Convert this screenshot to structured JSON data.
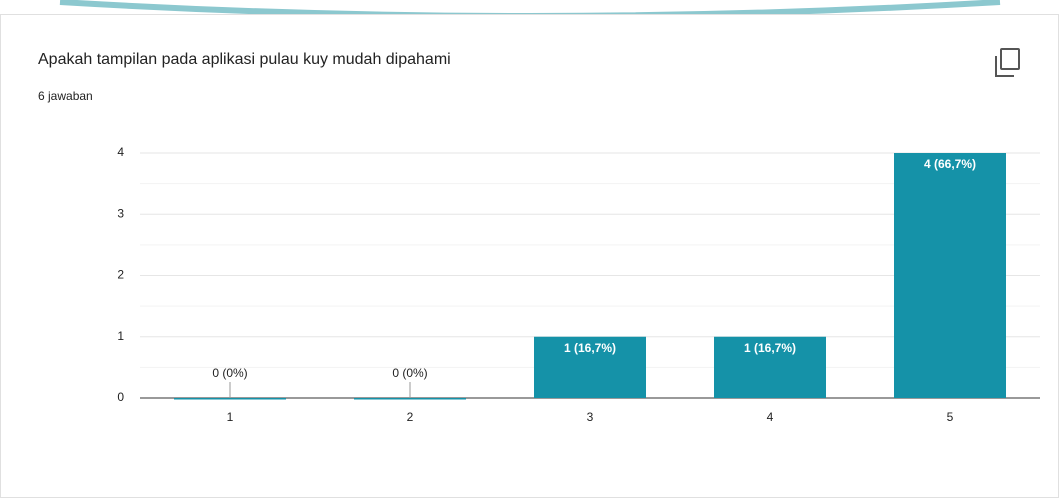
{
  "chart_data": {
    "type": "bar",
    "title": "Apakah tampilan pada aplikasi pulau kuy mudah dipahami",
    "subtitle": "6 jawaban",
    "categories": [
      "1",
      "2",
      "3",
      "4",
      "5"
    ],
    "values": [
      0,
      0,
      1,
      1,
      4
    ],
    "value_labels": [
      "0 (0%)",
      "0 (0%)",
      "1 (16,7%)",
      "1 (16,7%)",
      "4 (66,7%)"
    ],
    "color": "#1592a8",
    "ylim": [
      0,
      4
    ],
    "yticks": [
      0,
      1,
      2,
      3,
      4
    ],
    "grid": true
  }
}
